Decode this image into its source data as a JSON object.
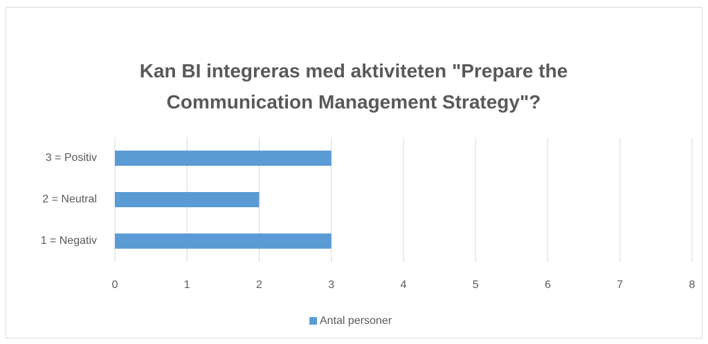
{
  "chart_data": {
    "type": "bar",
    "orientation": "horizontal",
    "title": "Kan BI integreras med aktiviteten \"Prepare the Communication Management Strategy\"?",
    "categories": [
      "1 = Negativ",
      "2 = Neutral",
      "3 = Positiv"
    ],
    "series": [
      {
        "name": "Antal personer",
        "color": "#5b9bd5",
        "values": [
          3,
          2,
          3
        ]
      }
    ],
    "xlim": [
      0,
      8
    ],
    "xticks": [
      0,
      1,
      2,
      3,
      4,
      5,
      6,
      7,
      8
    ],
    "grid": true,
    "legend": "bottom"
  }
}
